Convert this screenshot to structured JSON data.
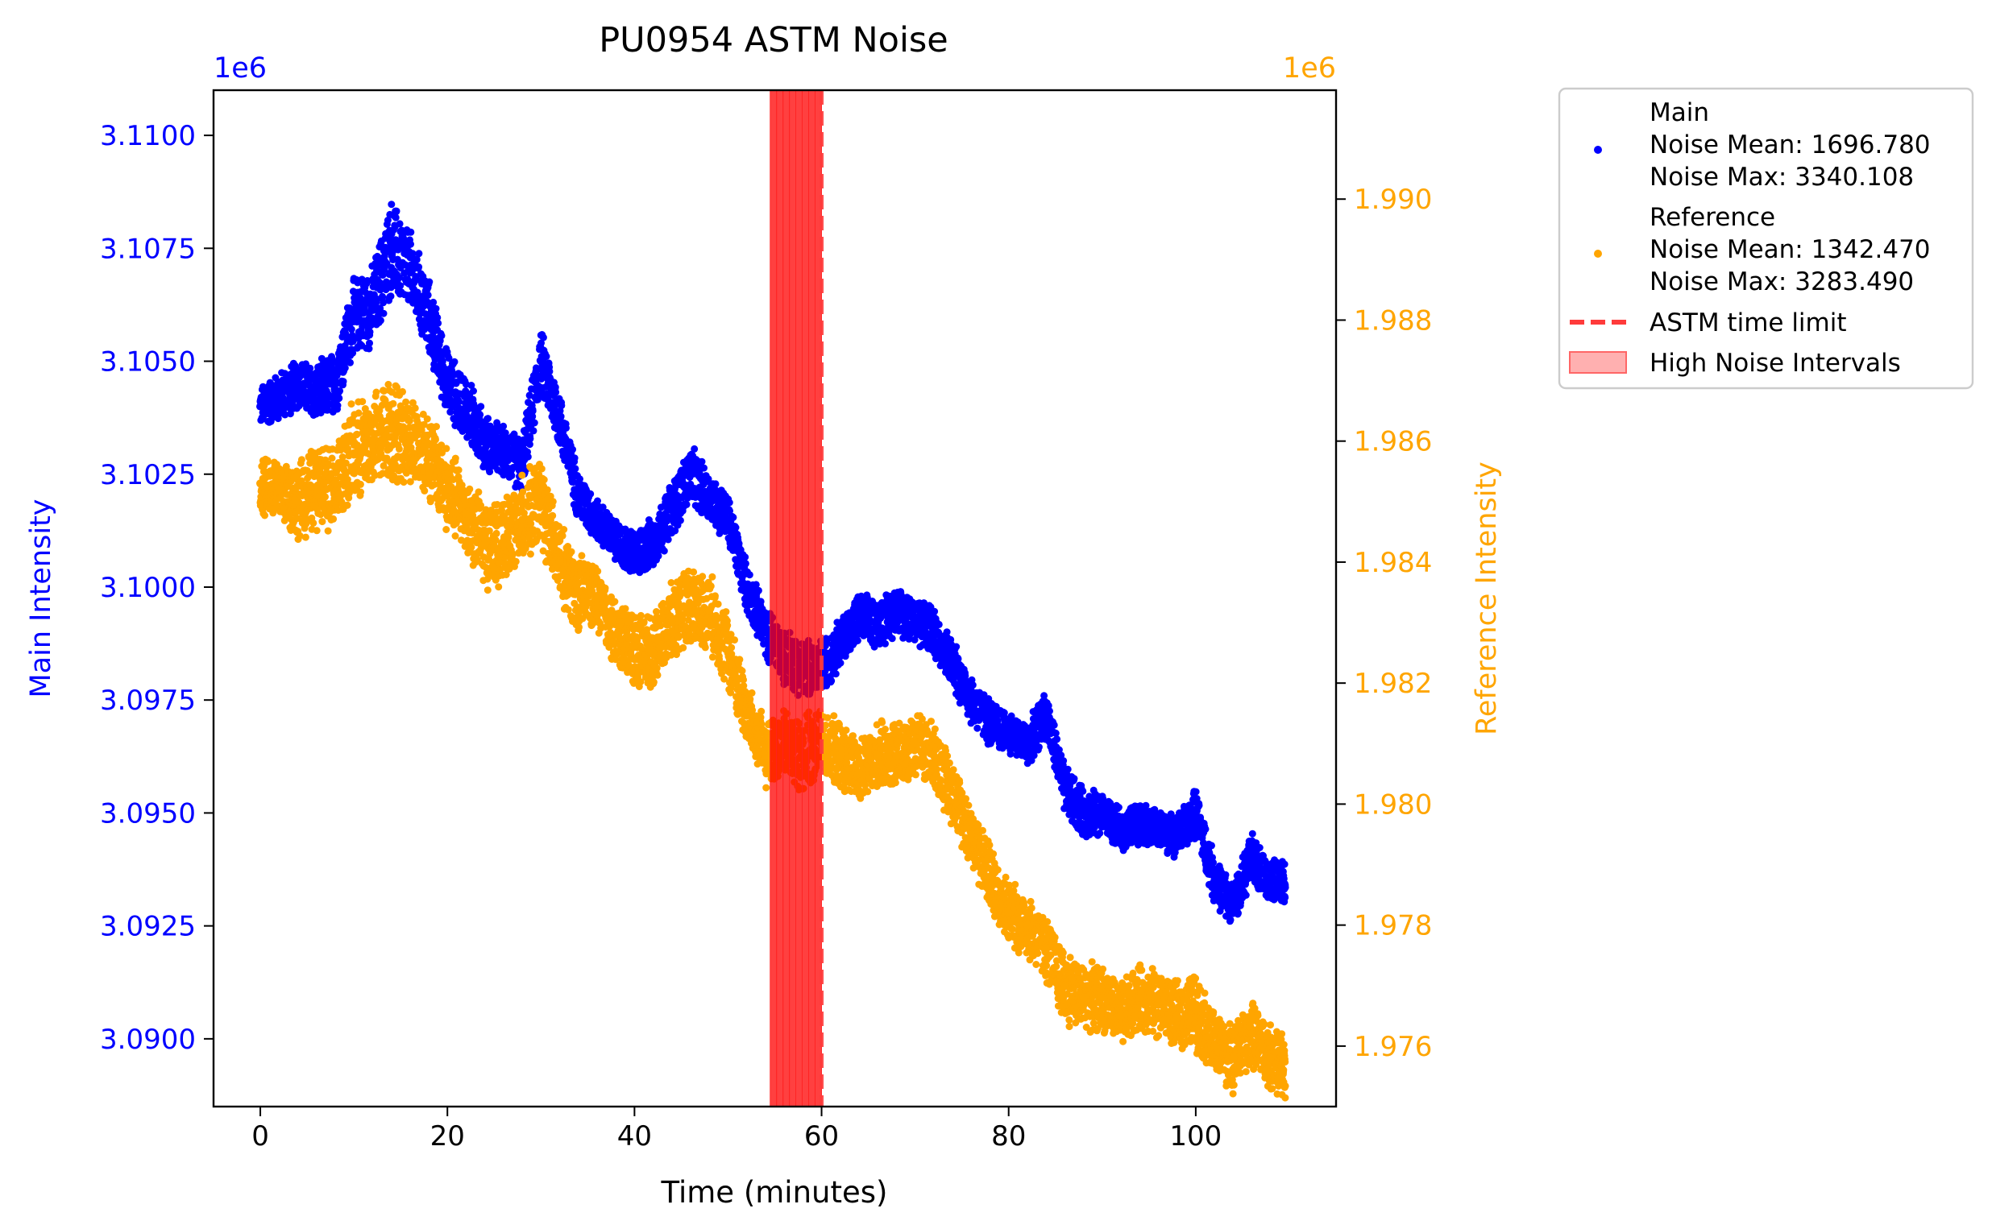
{
  "chart_data": {
    "type": "scatter",
    "title": "PU0954 ASTM Noise",
    "xlabel": "Time (minutes)",
    "ylabel_left": "Main Intensity",
    "ylabel_right": "Reference Intensity",
    "offset_left": "1e6",
    "offset_right": "1e6",
    "xlim": [
      -5,
      115
    ],
    "ylim_left": [
      3.0885,
      3.111
    ],
    "ylim_right": [
      1.975,
      1.9918
    ],
    "x_ticks": [
      0,
      20,
      40,
      60,
      80,
      100
    ],
    "x_tick_labels": [
      "0",
      "20",
      "40",
      "60",
      "80",
      "100"
    ],
    "y_left_ticks": [
      3.09,
      3.0925,
      3.095,
      3.0975,
      3.1,
      3.1025,
      3.105,
      3.1075,
      3.11
    ],
    "y_left_tick_labels": [
      "3.0900",
      "3.0925",
      "3.0950",
      "3.0975",
      "3.1000",
      "3.1025",
      "3.1050",
      "3.1075",
      "3.1100"
    ],
    "y_right_ticks": [
      1.976,
      1.978,
      1.98,
      1.982,
      1.984,
      1.986,
      1.988,
      1.99
    ],
    "y_right_tick_labels": [
      "1.976",
      "1.978",
      "1.980",
      "1.982",
      "1.984",
      "1.986",
      "1.988",
      "1.990"
    ],
    "grid": false,
    "legend_position": "outside-right-top",
    "astm_time_limit_x": 60,
    "high_noise_interval": [
      54.5,
      60
    ],
    "series": [
      {
        "name": "Main",
        "axis": "left",
        "color": "#0000ff",
        "legend_lines": [
          "Main",
          "Noise Mean: 1696.780",
          "Noise Max: 3340.108"
        ],
        "x": [
          0,
          2,
          4,
          6,
          8,
          10,
          12,
          14,
          16,
          18,
          20,
          22,
          24,
          26,
          28,
          30,
          32,
          34,
          36,
          38,
          40,
          42,
          44,
          46,
          48,
          50,
          52,
          54,
          56,
          58,
          60,
          62,
          64,
          66,
          68,
          70,
          72,
          74,
          76,
          78,
          80,
          82,
          84,
          86,
          88,
          90,
          92,
          94,
          96,
          98,
          100,
          102,
          104,
          106,
          108,
          110
        ],
        "y": [
          3.104,
          3.1042,
          3.1045,
          3.1043,
          3.1045,
          3.106,
          3.1062,
          3.1075,
          3.107,
          3.106,
          3.1045,
          3.104,
          3.1032,
          3.103,
          3.1027,
          3.105,
          3.1037,
          3.102,
          3.1015,
          3.101,
          3.1007,
          3.101,
          3.1017,
          3.1025,
          3.102,
          3.1015,
          3.1,
          3.099,
          3.0985,
          3.0982,
          3.0982,
          3.0988,
          3.0993,
          3.0992,
          3.0995,
          3.0993,
          3.099,
          3.0983,
          3.0975,
          3.097,
          3.0968,
          3.0965,
          3.0972,
          3.0955,
          3.095,
          3.095,
          3.0946,
          3.0948,
          3.0946,
          3.0945,
          3.095,
          3.0935,
          3.093,
          3.094,
          3.0935,
          3.0935
        ],
        "noise": [
          0.0005,
          0.0006,
          0.0006,
          0.0007,
          0.0008,
          0.0009,
          0.001,
          0.0012,
          0.001,
          0.0009,
          0.0008,
          0.0008,
          0.0007,
          0.0006,
          0.0007,
          0.0008,
          0.0007,
          0.0006,
          0.0005,
          0.0005,
          0.0006,
          0.0006,
          0.0007,
          0.0007,
          0.0006,
          0.0006,
          0.0006,
          0.0006,
          0.0007,
          0.0007,
          0.0007,
          0.0006,
          0.0006,
          0.0006,
          0.0006,
          0.0006,
          0.0006,
          0.0006,
          0.0006,
          0.0006,
          0.0005,
          0.0005,
          0.0006,
          0.0006,
          0.0006,
          0.0005,
          0.0005,
          0.0005,
          0.0005,
          0.0005,
          0.0006,
          0.0006,
          0.0005,
          0.0006,
          0.0005,
          0.0005
        ]
      },
      {
        "name": "Reference",
        "axis": "right",
        "color": "#ffa500",
        "legend_lines": [
          "Reference",
          "Noise Mean: 1342.470",
          "Noise Max: 3283.490"
        ],
        "x": [
          0,
          2,
          4,
          6,
          8,
          10,
          12,
          14,
          16,
          18,
          20,
          22,
          24,
          26,
          28,
          30,
          32,
          34,
          36,
          38,
          40,
          42,
          44,
          46,
          48,
          50,
          52,
          54,
          56,
          58,
          60,
          62,
          64,
          66,
          68,
          70,
          72,
          74,
          76,
          78,
          80,
          82,
          84,
          86,
          88,
          90,
          92,
          94,
          96,
          98,
          100,
          102,
          104,
          106,
          108,
          110
        ],
        "y": [
          1.9853,
          1.9852,
          1.985,
          1.9852,
          1.9853,
          1.9858,
          1.986,
          1.9862,
          1.986,
          1.9858,
          1.9852,
          1.9848,
          1.9843,
          1.9843,
          1.9847,
          1.985,
          1.984,
          1.9835,
          1.9834,
          1.9828,
          1.9826,
          1.9825,
          1.983,
          1.9833,
          1.9832,
          1.9825,
          1.9815,
          1.9808,
          1.981,
          1.9808,
          1.981,
          1.9808,
          1.9805,
          1.9808,
          1.9808,
          1.981,
          1.9808,
          1.9802,
          1.9795,
          1.9788,
          1.9782,
          1.978,
          1.9776,
          1.977,
          1.9768,
          1.9768,
          1.9765,
          1.9768,
          1.9767,
          1.9765,
          1.9766,
          1.976,
          1.9758,
          1.9762,
          1.9758,
          1.9757
        ],
        "noise": [
          0.0006,
          0.0006,
          0.0007,
          0.0008,
          0.0008,
          0.0009,
          0.0008,
          0.001,
          0.0008,
          0.0008,
          0.0008,
          0.0007,
          0.0008,
          0.0007,
          0.0008,
          0.0008,
          0.0007,
          0.0007,
          0.0006,
          0.0006,
          0.0007,
          0.0006,
          0.0007,
          0.0007,
          0.0007,
          0.0007,
          0.0006,
          0.0006,
          0.0006,
          0.0007,
          0.0006,
          0.0006,
          0.0006,
          0.0006,
          0.0006,
          0.0006,
          0.0006,
          0.0006,
          0.0006,
          0.0006,
          0.0006,
          0.0006,
          0.0006,
          0.0007,
          0.0006,
          0.0006,
          0.0006,
          0.0006,
          0.0006,
          0.0006,
          0.0007,
          0.0006,
          0.0006,
          0.0006,
          0.0006,
          0.0006
        ]
      }
    ],
    "limit_line": {
      "label": "ASTM time limit",
      "color": "#ff3b3b"
    },
    "interval_band": {
      "label": "High Noise Intervals",
      "color": "#ff0000"
    }
  }
}
